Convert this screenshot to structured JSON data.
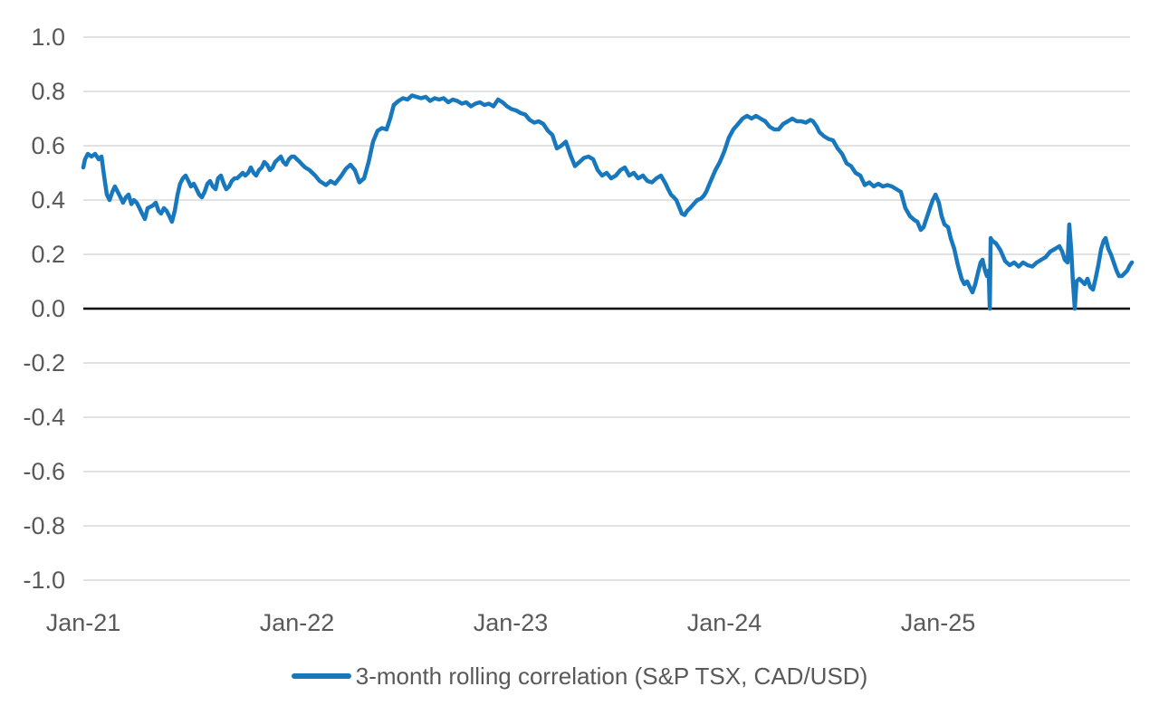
{
  "chart_data": {
    "type": "line",
    "title": "",
    "legend": {
      "position": "bottom",
      "label": "3-month rolling correlation (S&P TSX, CAD/USD)"
    },
    "colors": {
      "series": "#1878be",
      "gridline": "#d9d9d9",
      "zero_line": "#000000",
      "tick_label": "#595959"
    },
    "y_axis": {
      "range": [
        -1.0,
        1.0
      ],
      "ticks": [
        1.0,
        0.8,
        0.6,
        0.4,
        0.2,
        0.0,
        -0.2,
        -0.4,
        -0.6,
        -0.8,
        -1.0
      ],
      "decimals": 1
    },
    "x_axis": {
      "unit": "years-since-Jan-2021",
      "range_years": [
        0,
        4.92
      ],
      "ticks": [
        {
          "label": "Jan-21",
          "t": 0
        },
        {
          "label": "Jan-22",
          "t": 1
        },
        {
          "label": "Jan-23",
          "t": 2
        },
        {
          "label": "Jan-24",
          "t": 3
        },
        {
          "label": "Jan-25",
          "t": 4
        }
      ]
    },
    "grid": {
      "show": true,
      "zero_line": true
    },
    "series": [
      {
        "name": "3-month rolling correlation (S&P TSX, CAD/USD)",
        "color": "#1878be",
        "points": [
          [
            0.0,
            0.52
          ],
          [
            0.008,
            0.55
          ],
          [
            0.021,
            0.57
          ],
          [
            0.038,
            0.56
          ],
          [
            0.055,
            0.57
          ],
          [
            0.072,
            0.55
          ],
          [
            0.085,
            0.56
          ],
          [
            0.097,
            0.49
          ],
          [
            0.11,
            0.42
          ],
          [
            0.123,
            0.4
          ],
          [
            0.136,
            0.43
          ],
          [
            0.148,
            0.45
          ],
          [
            0.161,
            0.43
          ],
          [
            0.174,
            0.41
          ],
          [
            0.186,
            0.39
          ],
          [
            0.199,
            0.41
          ],
          [
            0.212,
            0.42
          ],
          [
            0.225,
            0.385
          ],
          [
            0.237,
            0.4
          ],
          [
            0.25,
            0.39
          ],
          [
            0.263,
            0.37
          ],
          [
            0.275,
            0.35
          ],
          [
            0.288,
            0.33
          ],
          [
            0.301,
            0.37
          ],
          [
            0.314,
            0.375
          ],
          [
            0.326,
            0.38
          ],
          [
            0.339,
            0.39
          ],
          [
            0.352,
            0.36
          ],
          [
            0.364,
            0.35
          ],
          [
            0.377,
            0.37
          ],
          [
            0.39,
            0.36
          ],
          [
            0.403,
            0.34
          ],
          [
            0.415,
            0.32
          ],
          [
            0.428,
            0.36
          ],
          [
            0.441,
            0.42
          ],
          [
            0.453,
            0.46
          ],
          [
            0.466,
            0.48
          ],
          [
            0.479,
            0.49
          ],
          [
            0.492,
            0.47
          ],
          [
            0.504,
            0.45
          ],
          [
            0.517,
            0.46
          ],
          [
            0.53,
            0.44
          ],
          [
            0.542,
            0.42
          ],
          [
            0.555,
            0.41
          ],
          [
            0.568,
            0.43
          ],
          [
            0.581,
            0.46
          ],
          [
            0.593,
            0.47
          ],
          [
            0.606,
            0.45
          ],
          [
            0.619,
            0.44
          ],
          [
            0.631,
            0.48
          ],
          [
            0.644,
            0.49
          ],
          [
            0.657,
            0.46
          ],
          [
            0.669,
            0.44
          ],
          [
            0.682,
            0.45
          ],
          [
            0.695,
            0.47
          ],
          [
            0.708,
            0.48
          ],
          [
            0.72,
            0.48
          ],
          [
            0.733,
            0.49
          ],
          [
            0.746,
            0.5
          ],
          [
            0.758,
            0.49
          ],
          [
            0.771,
            0.5
          ],
          [
            0.784,
            0.52
          ],
          [
            0.797,
            0.5
          ],
          [
            0.809,
            0.49
          ],
          [
            0.822,
            0.51
          ],
          [
            0.835,
            0.52
          ],
          [
            0.847,
            0.54
          ],
          [
            0.86,
            0.53
          ],
          [
            0.873,
            0.51
          ],
          [
            0.886,
            0.52
          ],
          [
            0.898,
            0.54
          ],
          [
            0.911,
            0.55
          ],
          [
            0.924,
            0.56
          ],
          [
            0.936,
            0.54
          ],
          [
            0.949,
            0.53
          ],
          [
            0.962,
            0.55
          ],
          [
            0.975,
            0.56
          ],
          [
            0.987,
            0.56
          ],
          [
            1.0,
            0.55
          ],
          [
            1.013,
            0.54
          ],
          [
            1.025,
            0.53
          ],
          [
            1.038,
            0.52
          ],
          [
            1.059,
            0.51
          ],
          [
            1.085,
            0.49
          ],
          [
            1.106,
            0.47
          ],
          [
            1.136,
            0.455
          ],
          [
            1.157,
            0.47
          ],
          [
            1.178,
            0.46
          ],
          [
            1.208,
            0.49
          ],
          [
            1.229,
            0.515
          ],
          [
            1.25,
            0.53
          ],
          [
            1.271,
            0.51
          ],
          [
            1.292,
            0.465
          ],
          [
            1.314,
            0.48
          ],
          [
            1.335,
            0.54
          ],
          [
            1.356,
            0.615
          ],
          [
            1.377,
            0.655
          ],
          [
            1.398,
            0.665
          ],
          [
            1.419,
            0.66
          ],
          [
            1.436,
            0.7
          ],
          [
            1.453,
            0.75
          ],
          [
            1.475,
            0.765
          ],
          [
            1.496,
            0.775
          ],
          [
            1.517,
            0.77
          ],
          [
            1.538,
            0.785
          ],
          [
            1.559,
            0.78
          ],
          [
            1.581,
            0.775
          ],
          [
            1.602,
            0.78
          ],
          [
            1.623,
            0.765
          ],
          [
            1.644,
            0.775
          ],
          [
            1.665,
            0.77
          ],
          [
            1.686,
            0.775
          ],
          [
            1.708,
            0.76
          ],
          [
            1.729,
            0.77
          ],
          [
            1.75,
            0.765
          ],
          [
            1.771,
            0.755
          ],
          [
            1.792,
            0.76
          ],
          [
            1.814,
            0.745
          ],
          [
            1.835,
            0.755
          ],
          [
            1.856,
            0.76
          ],
          [
            1.877,
            0.75
          ],
          [
            1.898,
            0.755
          ],
          [
            1.919,
            0.745
          ],
          [
            1.941,
            0.77
          ],
          [
            1.962,
            0.76
          ],
          [
            1.983,
            0.745
          ],
          [
            2.004,
            0.735
          ],
          [
            2.025,
            0.73
          ],
          [
            2.047,
            0.72
          ],
          [
            2.068,
            0.715
          ],
          [
            2.089,
            0.695
          ],
          [
            2.11,
            0.685
          ],
          [
            2.131,
            0.69
          ],
          [
            2.153,
            0.68
          ],
          [
            2.174,
            0.655
          ],
          [
            2.195,
            0.64
          ],
          [
            2.216,
            0.59
          ],
          [
            2.237,
            0.6
          ],
          [
            2.258,
            0.615
          ],
          [
            2.28,
            0.565
          ],
          [
            2.301,
            0.525
          ],
          [
            2.322,
            0.54
          ],
          [
            2.343,
            0.555
          ],
          [
            2.364,
            0.56
          ],
          [
            2.386,
            0.55
          ],
          [
            2.407,
            0.51
          ],
          [
            2.428,
            0.49
          ],
          [
            2.449,
            0.5
          ],
          [
            2.47,
            0.48
          ],
          [
            2.492,
            0.49
          ],
          [
            2.513,
            0.51
          ],
          [
            2.534,
            0.52
          ],
          [
            2.555,
            0.49
          ],
          [
            2.576,
            0.5
          ],
          [
            2.597,
            0.48
          ],
          [
            2.619,
            0.49
          ],
          [
            2.64,
            0.47
          ],
          [
            2.661,
            0.465
          ],
          [
            2.682,
            0.48
          ],
          [
            2.703,
            0.49
          ],
          [
            2.725,
            0.46
          ],
          [
            2.737,
            0.44
          ],
          [
            2.75,
            0.42
          ],
          [
            2.763,
            0.41
          ],
          [
            2.775,
            0.4
          ],
          [
            2.788,
            0.375
          ],
          [
            2.801,
            0.35
          ],
          [
            2.814,
            0.345
          ],
          [
            2.826,
            0.36
          ],
          [
            2.839,
            0.37
          ],
          [
            2.856,
            0.385
          ],
          [
            2.873,
            0.4
          ],
          [
            2.89,
            0.405
          ],
          [
            2.903,
            0.415
          ],
          [
            2.915,
            0.43
          ],
          [
            2.936,
            0.47
          ],
          [
            2.958,
            0.51
          ],
          [
            2.979,
            0.54
          ],
          [
            3.0,
            0.58
          ],
          [
            3.021,
            0.63
          ],
          [
            3.042,
            0.66
          ],
          [
            3.064,
            0.68
          ],
          [
            3.085,
            0.7
          ],
          [
            3.106,
            0.71
          ],
          [
            3.127,
            0.7
          ],
          [
            3.148,
            0.71
          ],
          [
            3.169,
            0.7
          ],
          [
            3.191,
            0.69
          ],
          [
            3.212,
            0.67
          ],
          [
            3.233,
            0.66
          ],
          [
            3.254,
            0.66
          ],
          [
            3.275,
            0.68
          ],
          [
            3.297,
            0.69
          ],
          [
            3.318,
            0.7
          ],
          [
            3.339,
            0.69
          ],
          [
            3.36,
            0.69
          ],
          [
            3.381,
            0.685
          ],
          [
            3.403,
            0.695
          ],
          [
            3.415,
            0.69
          ],
          [
            3.432,
            0.67
          ],
          [
            3.445,
            0.65
          ],
          [
            3.466,
            0.635
          ],
          [
            3.487,
            0.625
          ],
          [
            3.508,
            0.62
          ],
          [
            3.53,
            0.59
          ],
          [
            3.551,
            0.57
          ],
          [
            3.572,
            0.535
          ],
          [
            3.593,
            0.525
          ],
          [
            3.614,
            0.5
          ],
          [
            3.636,
            0.49
          ],
          [
            3.657,
            0.455
          ],
          [
            3.678,
            0.465
          ],
          [
            3.699,
            0.45
          ],
          [
            3.72,
            0.46
          ],
          [
            3.742,
            0.45
          ],
          [
            3.763,
            0.455
          ],
          [
            3.784,
            0.45
          ],
          [
            3.805,
            0.44
          ],
          [
            3.826,
            0.43
          ],
          [
            3.847,
            0.37
          ],
          [
            3.869,
            0.34
          ],
          [
            3.89,
            0.326
          ],
          [
            3.903,
            0.32
          ],
          [
            3.919,
            0.29
          ],
          [
            3.932,
            0.3
          ],
          [
            3.945,
            0.33
          ],
          [
            3.962,
            0.37
          ],
          [
            3.975,
            0.4
          ],
          [
            3.988,
            0.42
          ],
          [
            4.004,
            0.39
          ],
          [
            4.017,
            0.34
          ],
          [
            4.03,
            0.31
          ],
          [
            4.047,
            0.3
          ],
          [
            4.059,
            0.26
          ],
          [
            4.076,
            0.22
          ],
          [
            4.093,
            0.16
          ],
          [
            4.11,
            0.11
          ],
          [
            4.123,
            0.09
          ],
          [
            4.136,
            0.1
          ],
          [
            4.148,
            0.08
          ],
          [
            4.161,
            0.06
          ],
          [
            4.174,
            0.09
          ],
          [
            4.186,
            0.13
          ],
          [
            4.199,
            0.17
          ],
          [
            4.208,
            0.18
          ],
          [
            4.22,
            0.14
          ],
          [
            4.229,
            0.12
          ],
          [
            4.237,
            0.14
          ],
          [
            4.242,
            0.0
          ],
          [
            4.246,
            0.26
          ],
          [
            4.254,
            0.25
          ],
          [
            4.271,
            0.24
          ],
          [
            4.292,
            0.215
          ],
          [
            4.314,
            0.175
          ],
          [
            4.335,
            0.16
          ],
          [
            4.356,
            0.17
          ],
          [
            4.377,
            0.155
          ],
          [
            4.398,
            0.17
          ],
          [
            4.419,
            0.16
          ],
          [
            4.441,
            0.155
          ],
          [
            4.462,
            0.17
          ],
          [
            4.483,
            0.18
          ],
          [
            4.504,
            0.19
          ],
          [
            4.525,
            0.21
          ],
          [
            4.547,
            0.22
          ],
          [
            4.568,
            0.23
          ],
          [
            4.581,
            0.21
          ],
          [
            4.593,
            0.18
          ],
          [
            4.606,
            0.17
          ],
          [
            4.614,
            0.31
          ],
          [
            4.623,
            0.22
          ],
          [
            4.631,
            0.1
          ],
          [
            4.64,
            0.0
          ],
          [
            4.648,
            0.1
          ],
          [
            4.661,
            0.11
          ],
          [
            4.674,
            0.1
          ],
          [
            4.686,
            0.09
          ],
          [
            4.699,
            0.11
          ],
          [
            4.712,
            0.08
          ],
          [
            4.725,
            0.07
          ],
          [
            4.737,
            0.11
          ],
          [
            4.75,
            0.16
          ],
          [
            4.763,
            0.22
          ],
          [
            4.775,
            0.25
          ],
          [
            4.784,
            0.26
          ],
          [
            4.797,
            0.22
          ],
          [
            4.809,
            0.2
          ],
          [
            4.822,
            0.17
          ],
          [
            4.835,
            0.14
          ],
          [
            4.847,
            0.12
          ],
          [
            4.86,
            0.12
          ],
          [
            4.873,
            0.13
          ],
          [
            4.885,
            0.14
          ],
          [
            4.898,
            0.16
          ],
          [
            4.907,
            0.17
          ]
        ]
      }
    ]
  }
}
